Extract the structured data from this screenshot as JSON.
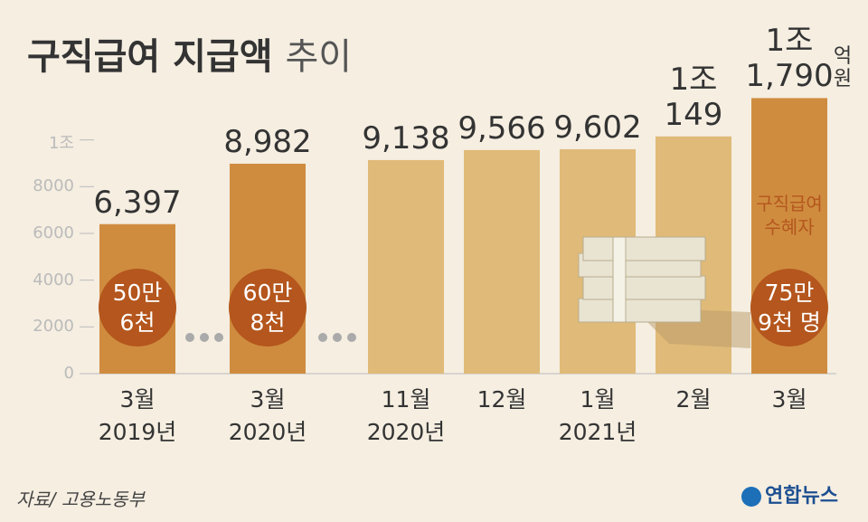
{
  "chart_data": {
    "type": "bar",
    "title": "구직급여 지급액",
    "title_suffix": "추이",
    "categories": [
      "3월\n2019년",
      "3월\n2020년",
      "11월\n2020년",
      "12월",
      "1월\n2021년",
      "2월",
      "3월"
    ],
    "values": [
      6397,
      8982,
      9138,
      9566,
      9602,
      10149,
      11790
    ],
    "value_labels": [
      "6,397",
      "8,982",
      "9,138",
      "9,566",
      "9,602",
      "1조\n149",
      "1조\n1,790"
    ],
    "value_unit": "억원",
    "colors": [
      "#cf8c3f",
      "#cf8c3f",
      "#e0ba78",
      "#e0ba78",
      "#e0ba78",
      "#e0ba78",
      "#cf8c3f"
    ],
    "ylim": [
      0,
      12000
    ],
    "yticks": [
      0,
      2000,
      4000,
      6000,
      8000,
      {
        "value": 10000,
        "label": "1조"
      }
    ],
    "recipients_title": "구직급여\n수혜자",
    "recipients": [
      {
        "index": 0,
        "label": "50만\n6천"
      },
      {
        "index": 1,
        "label": "60만\n8천"
      },
      {
        "index": 6,
        "label": "75만\n9천 명"
      }
    ],
    "source": "자료/ 고용노동부",
    "logo": "연합뉴스"
  }
}
